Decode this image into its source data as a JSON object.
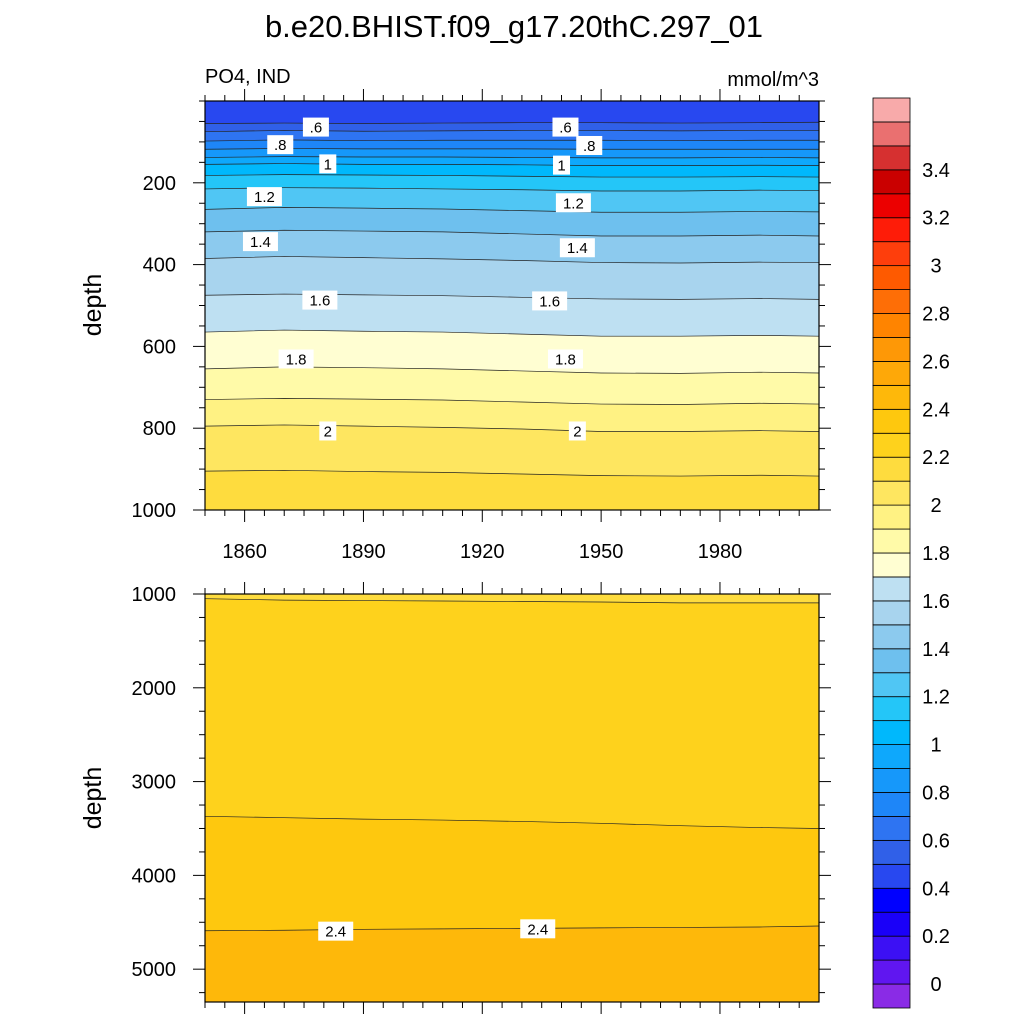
{
  "figure": {
    "title": "b.e20.BHIST.f09_g17.20thC.297_01",
    "left_subtitle": "PO4, IND",
    "right_subtitle": "mmol/m^3"
  },
  "chart_data": [
    {
      "type": "heatmap",
      "panel": "upper",
      "ylabel": "depth",
      "xlabel": "",
      "xlim": [
        1850,
        2005
      ],
      "ylim": [
        1000,
        0
      ],
      "x_ticks": [
        1860,
        1890,
        1920,
        1950,
        1980
      ],
      "y_ticks": [
        200,
        400,
        600,
        800,
        1000
      ],
      "x_tick_labels": [
        "1860",
        "1890",
        "1920",
        "1950",
        "1980"
      ],
      "y_tick_labels": [
        "200",
        "400",
        "600",
        "800",
        "1000"
      ],
      "x": [
        1850,
        1870,
        1890,
        1910,
        1930,
        1950,
        1970,
        1990,
        2005
      ],
      "contours": [
        {
          "level": 0.5,
          "depths": [
            55,
            54,
            55,
            54,
            53,
            53,
            54,
            53,
            52
          ]
        },
        {
          "level": 0.6,
          "depths": [
            75,
            72,
            74,
            73,
            72,
            72,
            73,
            72,
            72
          ]
        },
        {
          "level": 0.7,
          "depths": [
            98,
            95,
            97,
            96,
            96,
            96,
            97,
            96,
            96
          ]
        },
        {
          "level": 0.8,
          "depths": [
            118,
            116,
            117,
            117,
            117,
            118,
            118,
            118,
            118
          ]
        },
        {
          "level": 0.9,
          "depths": [
            138,
            136,
            137,
            137,
            138,
            139,
            139,
            138,
            139
          ]
        },
        {
          "level": 1.0,
          "depths": [
            155,
            153,
            155,
            155,
            156,
            158,
            158,
            157,
            158
          ]
        },
        {
          "level": 1.1,
          "depths": [
            182,
            180,
            181,
            182,
            184,
            186,
            186,
            185,
            186
          ]
        },
        {
          "level": 1.2,
          "depths": [
            215,
            212,
            213,
            215,
            217,
            220,
            220,
            218,
            219
          ]
        },
        {
          "level": 1.3,
          "depths": [
            265,
            260,
            262,
            264,
            268,
            272,
            272,
            270,
            271
          ]
        },
        {
          "level": 1.4,
          "depths": [
            320,
            316,
            318,
            320,
            325,
            330,
            330,
            328,
            330
          ]
        },
        {
          "level": 1.5,
          "depths": [
            385,
            380,
            383,
            386,
            390,
            395,
            396,
            394,
            395
          ]
        },
        {
          "level": 1.6,
          "depths": [
            475,
            472,
            474,
            476,
            480,
            484,
            485,
            483,
            485
          ]
        },
        {
          "level": 1.7,
          "depths": [
            565,
            560,
            563,
            565,
            570,
            575,
            575,
            573,
            575
          ]
        },
        {
          "level": 1.8,
          "depths": [
            655,
            650,
            652,
            655,
            660,
            665,
            666,
            663,
            665
          ]
        },
        {
          "level": 1.9,
          "depths": [
            730,
            727,
            729,
            731,
            736,
            741,
            742,
            739,
            741
          ]
        },
        {
          "level": 2.0,
          "depths": [
            795,
            792,
            795,
            798,
            802,
            808,
            808,
            806,
            808
          ]
        },
        {
          "level": 2.1,
          "depths": [
            905,
            903,
            906,
            908,
            912,
            916,
            917,
            915,
            917
          ]
        }
      ],
      "contour_labels": [
        {
          "text": ".6",
          "x": 1878,
          "y": 65
        },
        {
          "text": ".6",
          "x": 1941,
          "y": 65
        },
        {
          "text": ".8",
          "x": 1869,
          "y": 108
        },
        {
          "text": ".8",
          "x": 1947,
          "y": 110
        },
        {
          "text": "1",
          "x": 1881,
          "y": 155
        },
        {
          "text": "1",
          "x": 1940,
          "y": 158
        },
        {
          "text": "1.2",
          "x": 1865,
          "y": 235
        },
        {
          "text": "1.2",
          "x": 1943,
          "y": 250
        },
        {
          "text": "1.4",
          "x": 1864,
          "y": 345
        },
        {
          "text": "1.4",
          "x": 1944,
          "y": 360
        },
        {
          "text": "1.6",
          "x": 1879,
          "y": 488
        },
        {
          "text": "1.6",
          "x": 1937,
          "y": 490
        },
        {
          "text": "1.8",
          "x": 1873,
          "y": 632
        },
        {
          "text": "1.8",
          "x": 1941,
          "y": 632
        },
        {
          "text": "2",
          "x": 1881,
          "y": 808
        },
        {
          "text": "2",
          "x": 1944,
          "y": 808
        }
      ]
    },
    {
      "type": "heatmap",
      "panel": "lower",
      "ylabel": "depth",
      "xlabel": "",
      "xlim": [
        1850,
        2005
      ],
      "ylim": [
        5350,
        1000
      ],
      "x_ticks": [
        1860,
        1890,
        1920,
        1950,
        1980
      ],
      "y_ticks": [
        1000,
        2000,
        3000,
        4000,
        5000
      ],
      "y_tick_labels": [
        "1000",
        "2000",
        "3000",
        "4000",
        "5000"
      ],
      "x": [
        1850,
        1870,
        1890,
        1910,
        1930,
        1950,
        1970,
        1990,
        2005
      ],
      "contours": [
        {
          "level": 2.2,
          "depths": [
            1050,
            1065,
            1070,
            1075,
            1080,
            1085,
            1095,
            1095,
            1095
          ]
        },
        {
          "level": 2.3,
          "depths": [
            3370,
            3385,
            3400,
            3410,
            3425,
            3445,
            3470,
            3490,
            3500
          ]
        },
        {
          "level": 2.4,
          "depths": [
            4590,
            4585,
            4575,
            4570,
            4565,
            4560,
            4555,
            4550,
            4540
          ]
        }
      ],
      "contour_labels": [
        {
          "text": "2.4",
          "x": 1883,
          "y": 4600
        },
        {
          "text": "2.4",
          "x": 1934,
          "y": 4575
        }
      ]
    }
  ],
  "colorbar": {
    "levels": [
      -0.1,
      0,
      0.1,
      0.2,
      0.3,
      0.4,
      0.5,
      0.6,
      0.7,
      0.8,
      0.9,
      1.0,
      1.1,
      1.2,
      1.3,
      1.4,
      1.5,
      1.6,
      1.7,
      1.8,
      1.9,
      2.0,
      2.1,
      2.2,
      2.3,
      2.4,
      2.5,
      2.6,
      2.7,
      2.8,
      2.9,
      3.0,
      3.1,
      3.2,
      3.3,
      3.4,
      3.5,
      3.6
    ],
    "colors": [
      "#8a2be6",
      "#6016f0",
      "#3c10f4",
      "#1a00f8",
      "#0000ff",
      "#2848f0",
      "#3060e8",
      "#2e74f2",
      "#1e86f8",
      "#1698fa",
      "#0ea8fc",
      "#00b8fc",
      "#24c6f8",
      "#50c6f4",
      "#6ec0ee",
      "#8ccaee",
      "#a8d4ee",
      "#bee0f2",
      "#fffed2",
      "#fffaa8",
      "#fff283",
      "#fee660",
      "#fedc3e",
      "#fed21c",
      "#fec80e",
      "#feb80a",
      "#fea808",
      "#fe9806",
      "#ff8400",
      "#fe6e06",
      "#fe5a00",
      "#fe3e0c",
      "#fe1c08",
      "#ec0000",
      "#ca0000",
      "#d63030",
      "#ea7070",
      "#f8aaaa"
    ],
    "tick_values": [
      0,
      0.2,
      0.4,
      0.6,
      0.8,
      1.0,
      1.2,
      1.4,
      1.6,
      1.8,
      2.0,
      2.2,
      2.4,
      2.6,
      2.8,
      3.0,
      3.2,
      3.4
    ],
    "tick_labels": [
      "0",
      "0.2",
      "0.4",
      "0.6",
      "0.8",
      "1",
      "1.2",
      "1.4",
      "1.6",
      "1.8",
      "2",
      "2.2",
      "2.4",
      "2.6",
      "2.8",
      "3",
      "3.2",
      "3.4"
    ]
  }
}
